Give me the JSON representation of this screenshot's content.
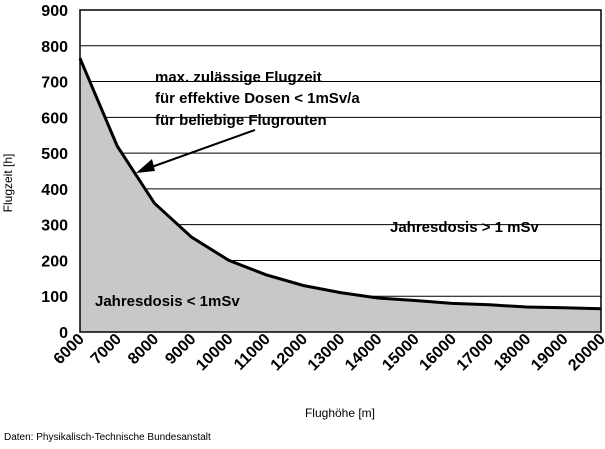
{
  "chart_data": {
    "type": "area",
    "xlabel": "Flughöhe [m]",
    "ylabel": "Flugzeit [h]",
    "xlim": [
      6000,
      20000
    ],
    "ylim": [
      0,
      900
    ],
    "x_ticks": [
      "6000",
      "7000",
      "8000",
      "9000",
      "10000",
      "11000",
      "12000",
      "13000",
      "14000",
      "15000",
      "16000",
      "17000",
      "18000",
      "19000",
      "20000"
    ],
    "y_ticks": [
      "0",
      "100",
      "200",
      "300",
      "400",
      "500",
      "600",
      "700",
      "800",
      "900"
    ],
    "grid": "horizontal",
    "x": [
      6000,
      7000,
      8000,
      9000,
      10000,
      11000,
      12000,
      13000,
      14000,
      15000,
      16000,
      17000,
      18000,
      19000,
      20000
    ],
    "y": [
      765,
      520,
      360,
      265,
      200,
      160,
      130,
      110,
      95,
      88,
      80,
      76,
      70,
      68,
      65
    ],
    "annotations": {
      "curve_note": [
        "max. zulässige Flugzeit",
        "für effektive Dosen < 1mSv/a",
        "für beliebige Flugrouten"
      ],
      "above": "Jahresdosis > 1 mSv",
      "below": "Jahresdosis < 1mSv"
    },
    "colors": {
      "fill": "#c8c8c8",
      "line": "#000000",
      "grid": "#000000"
    }
  },
  "source": "Daten: Physikalisch-Technische Bundesanstalt"
}
